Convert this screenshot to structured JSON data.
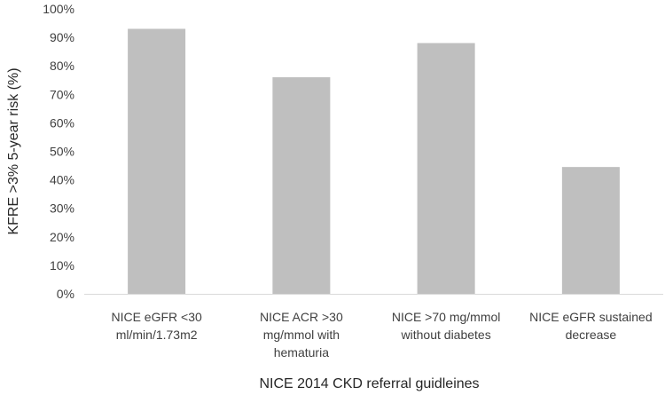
{
  "chart_data": {
    "type": "bar",
    "title": "",
    "xlabel": "NICE 2014 CKD referral guidleines",
    "ylabel": "KFRE >3% 5-year risk (%)",
    "ylim": [
      0,
      100
    ],
    "yticks": [
      0,
      10,
      20,
      30,
      40,
      50,
      60,
      70,
      80,
      90,
      100
    ],
    "ytick_labels": [
      "0%",
      "10%",
      "20%",
      "30%",
      "40%",
      "50%",
      "60%",
      "70%",
      "80%",
      "90%",
      "100%"
    ],
    "grid": false,
    "categories": [
      [
        "NICE eGFR <30",
        "ml/min/1.73m2"
      ],
      [
        "NICE ACR >30",
        "mg/mmol with",
        "hematuria"
      ],
      [
        "NICE >70 mg/mmol",
        "without diabetes"
      ],
      [
        "NICE eGFR sustained",
        "decrease"
      ]
    ],
    "values": [
      93,
      76,
      88,
      44.5
    ],
    "colors": {
      "bar": "#bfbfbf",
      "axis": "#d9d9d9",
      "text": "#404040"
    }
  }
}
